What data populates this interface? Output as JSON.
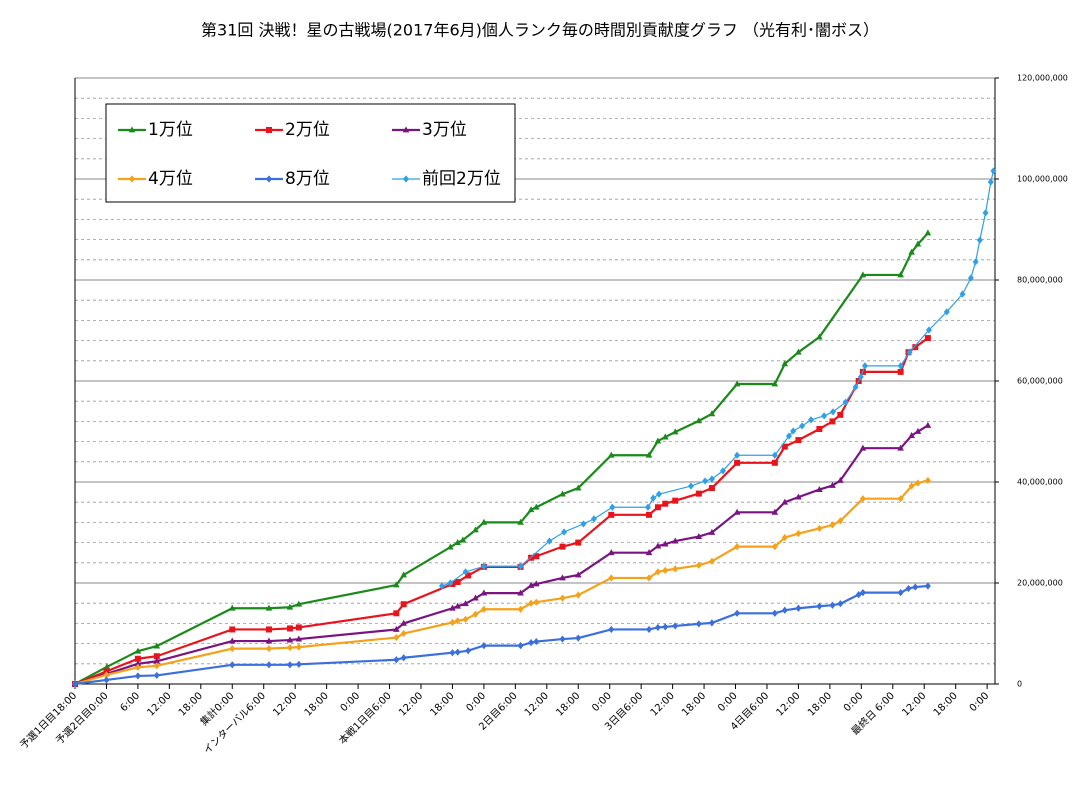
{
  "chart_data": {
    "type": "line",
    "title": "第31回  決戦！星の古戦場(2017年6月)個人ランク毎の時間別貢献度グラフ （光有利･闇ボス）",
    "xlim": [
      0,
      175.5
    ],
    "ylim": [
      0,
      120000000
    ],
    "yticks": [
      0,
      {
        "value": 20000000,
        "label": "20,000,000"
      },
      {
        "value": 40000000,
        "label": "40,000,000"
      },
      {
        "value": 60000000,
        "label": "60,000,000"
      },
      {
        "value": 80000000,
        "label": "80,000,000"
      },
      {
        "value": 100000000,
        "label": "100,000,000"
      },
      {
        "value": 120000000,
        "label": "120,000,000"
      }
    ],
    "minor_yticks": [
      4000000,
      8000000,
      12000000,
      16000000,
      24000000,
      28000000,
      32000000,
      36000000,
      44000000,
      48000000,
      52000000,
      56000000,
      64000000,
      68000000,
      72000000,
      76000000,
      84000000,
      88000000,
      92000000,
      96000000,
      104000000,
      108000000,
      112000000,
      116000000
    ],
    "xticks": [
      {
        "value": 0,
        "label": "予選1日目18:00"
      },
      {
        "value": 6,
        "label": "予選2日目0:00"
      },
      {
        "value": 12,
        "label": "6:00"
      },
      {
        "value": 18,
        "label": "12:00"
      },
      {
        "value": 24,
        "label": "18:00"
      },
      {
        "value": 30,
        "label": "集計0:00"
      },
      {
        "value": 36,
        "label": "インターバル6:00"
      },
      {
        "value": 42,
        "label": "12:00"
      },
      {
        "value": 48,
        "label": "18:00"
      },
      {
        "value": 54,
        "label": "0:00"
      },
      {
        "value": 60,
        "label": "本戦1日目6:00"
      },
      {
        "value": 66,
        "label": "12:00"
      },
      {
        "value": 72,
        "label": "18:00"
      },
      {
        "value": 78,
        "label": "0:00"
      },
      {
        "value": 84,
        "label": "2日目6:00"
      },
      {
        "value": 90,
        "label": "12:00"
      },
      {
        "value": 96,
        "label": "18:00"
      },
      {
        "value": 102,
        "label": "0:00"
      },
      {
        "value": 108,
        "label": "3日目6:00"
      },
      {
        "value": 114,
        "label": "12:00"
      },
      {
        "value": 120,
        "label": "18:00"
      },
      {
        "value": 126,
        "label": "0:00"
      },
      {
        "value": 132,
        "label": "4日目6:00"
      },
      {
        "value": 138,
        "label": "12:00"
      },
      {
        "value": 144,
        "label": "18:00"
      },
      {
        "value": 150,
        "label": "0:00"
      },
      {
        "value": 156,
        "label": "最終日 6:00"
      },
      {
        "value": 162,
        "label": "12:00"
      },
      {
        "value": 168,
        "label": "18:00"
      },
      {
        "value": 174,
        "label": "0:00"
      }
    ],
    "grid": true,
    "legend": "upper left",
    "series": [
      {
        "name": "1万位",
        "color": "#1a8a1a",
        "marker": "triangle",
        "x": [
          0,
          6.1,
          12,
          15.6,
          30,
          37,
          41,
          42.7,
          61.3,
          62.7,
          71.6,
          73,
          74,
          76.4,
          78,
          85,
          87,
          88,
          93,
          96,
          102.3,
          109.5,
          111.2,
          112.6,
          114.5,
          119,
          121.5,
          126.3,
          133.5,
          135.4,
          138,
          142,
          150.3,
          157.5,
          159.6,
          160.8,
          162.7
        ],
        "values": [
          0,
          3400000,
          6500000,
          7500000,
          15000000,
          15000000,
          15200000,
          15800000,
          19600000,
          21600000,
          27100000,
          28000000,
          28500000,
          30500000,
          32000000,
          32000000,
          34500000,
          35000000,
          37600000,
          38800000,
          45300000,
          45300000,
          48100000,
          48900000,
          49900000,
          52100000,
          53500000,
          59400000,
          59400000,
          63400000,
          65700000,
          68700000,
          81000000,
          81000000,
          85500000,
          87100000,
          89300000
        ]
      },
      {
        "name": "2万位",
        "color": "#e8141c",
        "marker": "square",
        "x": [
          0,
          6,
          12,
          15.6,
          30,
          37,
          41,
          42.7,
          61.3,
          62.7,
          72,
          73,
          75,
          78,
          85,
          87,
          88,
          93,
          96,
          102.3,
          109.5,
          111.2,
          112.6,
          114.5,
          119,
          121.5,
          126.3,
          133.5,
          135.4,
          138,
          142,
          144.5,
          146,
          149.5,
          150.3,
          157.5,
          159,
          160.3,
          162.7
        ],
        "values": [
          0,
          2500000,
          5000000,
          5500000,
          10800000,
          10800000,
          11000000,
          11200000,
          14000000,
          15800000,
          19800000,
          20200000,
          21500000,
          23200000,
          23200000,
          25000000,
          25300000,
          27200000,
          28000000,
          33500000,
          33500000,
          35000000,
          35700000,
          36300000,
          37700000,
          38800000,
          43800000,
          43800000,
          47000000,
          48300000,
          50500000,
          52000000,
          53300000,
          60000000,
          61800000,
          61800000,
          65700000,
          66700000,
          68500000
        ]
      },
      {
        "name": "3万位",
        "color": "#7a1480",
        "marker": "triangle",
        "x": [
          0,
          6,
          12,
          15.6,
          30,
          37,
          41,
          42.7,
          61.3,
          62.7,
          72,
          73,
          74.5,
          76.4,
          78,
          85,
          87,
          88,
          93,
          96,
          102.3,
          109.5,
          111.2,
          112.6,
          114.5,
          119,
          121.5,
          126.3,
          133.5,
          135.4,
          138,
          142,
          144.5,
          146,
          150.3,
          157.5,
          159.6,
          160.8,
          162.7
        ],
        "values": [
          0,
          2000000,
          4000000,
          4500000,
          8500000,
          8500000,
          8700000,
          8900000,
          10800000,
          12000000,
          15000000,
          15400000,
          15900000,
          17000000,
          18000000,
          18000000,
          19500000,
          19800000,
          21000000,
          21600000,
          26000000,
          26000000,
          27300000,
          27700000,
          28300000,
          29200000,
          30000000,
          34000000,
          34000000,
          36000000,
          37000000,
          38500000,
          39300000,
          40300000,
          46700000,
          46700000,
          49200000,
          50000000,
          51200000
        ]
      },
      {
        "name": "4万位",
        "color": "#f5a21a",
        "marker": "diamond",
        "x": [
          0,
          6,
          12,
          15.6,
          30,
          37,
          41,
          42.7,
          61.3,
          62.7,
          72,
          73,
          74.5,
          76.4,
          78,
          85,
          87,
          88,
          93,
          96,
          102.3,
          109.5,
          111.2,
          112.6,
          114.5,
          119,
          121.5,
          126.3,
          133.5,
          135.4,
          138,
          142,
          144.5,
          146,
          150.3,
          157.5,
          159.6,
          160.8,
          162.7
        ],
        "values": [
          0,
          1800000,
          3300000,
          3600000,
          7000000,
          7000000,
          7200000,
          7300000,
          9200000,
          10000000,
          12200000,
          12500000,
          12800000,
          13800000,
          14800000,
          14800000,
          16000000,
          16200000,
          17000000,
          17600000,
          21000000,
          21000000,
          22200000,
          22500000,
          22800000,
          23500000,
          24300000,
          27200000,
          27200000,
          29000000,
          29800000,
          30800000,
          31500000,
          32300000,
          36700000,
          36700000,
          39200000,
          39800000,
          40300000
        ]
      },
      {
        "name": "8万位",
        "color": "#3a6fdc",
        "marker": "diamond",
        "x": [
          0,
          6,
          12,
          15.6,
          30,
          37,
          41,
          42.7,
          61.3,
          62.7,
          72,
          73,
          75,
          78,
          85,
          87,
          88,
          93,
          96,
          102.3,
          109.5,
          111.2,
          112.6,
          114.5,
          119,
          121.5,
          126.3,
          133.5,
          135.4,
          138,
          142,
          144.5,
          146,
          149.5,
          150.3,
          157.5,
          159,
          160.3,
          162.7
        ],
        "values": [
          0,
          800000,
          1600000,
          1700000,
          3800000,
          3800000,
          3800000,
          3900000,
          4800000,
          5200000,
          6200000,
          6300000,
          6600000,
          7600000,
          7600000,
          8200000,
          8400000,
          8900000,
          9100000,
          10800000,
          10800000,
          11200000,
          11300000,
          11500000,
          11900000,
          12100000,
          14000000,
          14000000,
          14600000,
          15000000,
          15400000,
          15600000,
          15900000,
          17700000,
          18100000,
          18100000,
          18900000,
          19200000,
          19400000
        ]
      },
      {
        "name": "前回2万位",
        "color": "#2fa0e6",
        "marker": "diamond",
        "thin": true,
        "x": [
          70,
          71.6,
          74.5,
          78,
          85,
          90.5,
          93.3,
          97,
          99,
          102.5,
          109.3,
          110.3,
          111.4,
          117.5,
          120.2,
          121.5,
          123.6,
          126.3,
          133.5,
          136.2,
          137,
          138.7,
          140.4,
          142.9,
          144.6,
          147,
          148.9,
          149.9,
          150.7,
          157.5,
          159.2,
          162.9,
          166.3,
          169.3,
          170.9,
          171.8,
          172.6,
          173.7,
          174.7,
          175.2
        ],
        "values": [
          19400000,
          20000000,
          22200000,
          23300000,
          23300000,
          28300000,
          30100000,
          31700000,
          32700000,
          35000000,
          35000000,
          36800000,
          37600000,
          39200000,
          40200000,
          40600000,
          42200000,
          45300000,
          45300000,
          49100000,
          50100000,
          51100000,
          52300000,
          53100000,
          53900000,
          55800000,
          58800000,
          60800000,
          63000000,
          63000000,
          65700000,
          70100000,
          73700000,
          77200000,
          80400000,
          83600000,
          87900000,
          93300000,
          99400000,
          101600000
        ]
      }
    ]
  }
}
